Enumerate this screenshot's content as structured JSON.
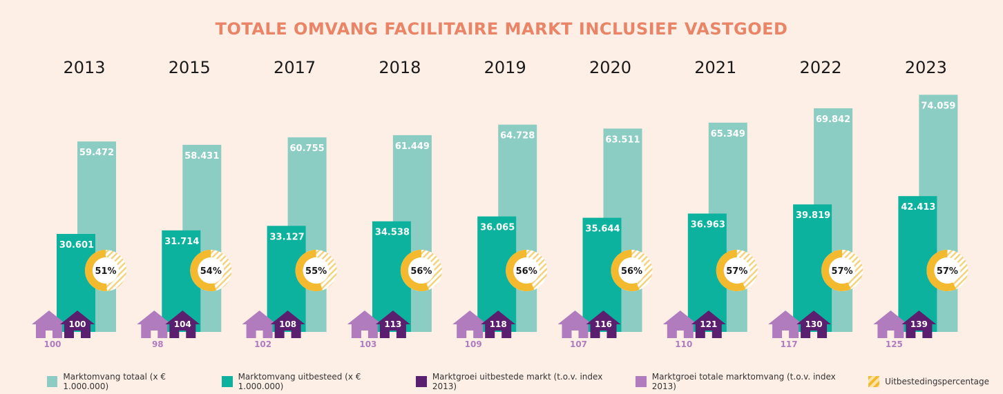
{
  "title": "TOTALE OMVANG FACILITAIRE MARKT INCLUSIEF VASTGOED",
  "colors": {
    "totaal": "#8ccdc3",
    "uitbesteed": "#0cb29e",
    "groei_uitbesteed": "#5a1f6e",
    "groei_totaal": "#b07cbe",
    "percentage": "#f3b92f",
    "title": "#ea8466"
  },
  "legend": [
    {
      "label": "Marktomvang totaal (x € 1.000.000)",
      "color": "#8ccdc3"
    },
    {
      "label": "Marktomvang uitbesteed (x € 1.000.000)",
      "color": "#0cb29e"
    },
    {
      "label": "Marktgroei uitbestede markt (t.o.v. index 2013)",
      "color": "#5a1f6e"
    },
    {
      "label": "Marktgroei totale marktomvang (t.o.v. index 2013)",
      "color": "#b07cbe"
    },
    {
      "label": "Uitbestedingspercentage",
      "color": "#f3b92f"
    }
  ],
  "chart_data": {
    "type": "bar",
    "title": "TOTALE OMVANG FACILITAIRE MARKT INCLUSIEF VASTGOED",
    "categories": [
      "2013",
      "2015",
      "2017",
      "2018",
      "2019",
      "2020",
      "2021",
      "2022",
      "2023"
    ],
    "series": [
      {
        "name": "Marktomvang totaal (x € 1.000.000)",
        "values": [
          59472,
          58431,
          60755,
          61449,
          64728,
          63511,
          65349,
          69842,
          74059
        ],
        "labels": [
          "59.472",
          "58.431",
          "60.755",
          "61.449",
          "64.728",
          "63.511",
          "65.349",
          "69.842",
          "74.059"
        ]
      },
      {
        "name": "Marktomvang uitbesteed (x € 1.000.000)",
        "values": [
          30601,
          31714,
          33127,
          34538,
          36065,
          35644,
          36963,
          39819,
          42413
        ],
        "labels": [
          "30.601",
          "31.714",
          "33.127",
          "34.538",
          "36.065",
          "35.644",
          "36.963",
          "39.819",
          "42.413"
        ]
      },
      {
        "name": "Marktgroei uitbestede markt (t.o.v. index 2013)",
        "values": [
          100,
          104,
          108,
          113,
          118,
          116,
          121,
          130,
          139
        ]
      },
      {
        "name": "Marktgroei totale marktomvang (t.o.v. index 2013)",
        "values": [
          100,
          98,
          102,
          103,
          109,
          107,
          110,
          117,
          125
        ]
      },
      {
        "name": "Uitbestedingspercentage",
        "values": [
          51,
          54,
          55,
          56,
          56,
          56,
          57,
          57,
          57
        ],
        "labels": [
          "51%",
          "54%",
          "55%",
          "56%",
          "56%",
          "56%",
          "57%",
          "57%",
          "57%"
        ]
      }
    ],
    "ylim": [
      0,
      75000
    ],
    "grid": false,
    "legend_position": "bottom"
  }
}
